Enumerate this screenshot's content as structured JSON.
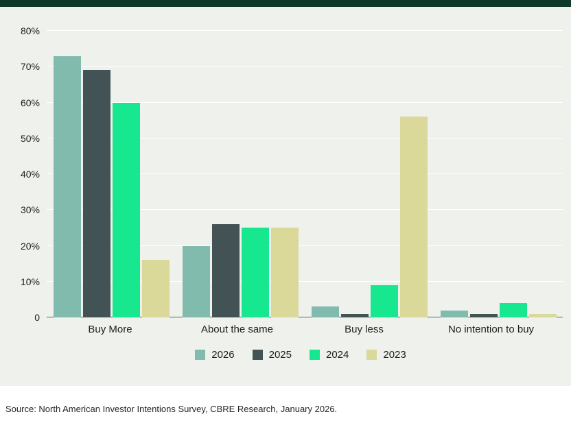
{
  "page": {
    "source_note": "Source: North American Investor Intentions Survey, CBRE Research, January 2026."
  },
  "colors": {
    "top_bar": "#0e3a2c",
    "panel_bg": "#eff1ed",
    "gridline": "#ffffff",
    "axis": "#5a5f5c"
  },
  "chart_data": {
    "type": "bar",
    "title": "",
    "xlabel": "",
    "ylabel": "",
    "ylim": [
      0,
      80
    ],
    "grid": true,
    "legend_position": "bottom",
    "yticks": [
      "80%",
      "70%",
      "60%",
      "50%",
      "40%",
      "30%",
      "20%",
      "10%",
      "0"
    ],
    "categories": [
      "Buy More",
      "About the same",
      "Buy less",
      "No intention to buy"
    ],
    "series": [
      {
        "name": "2026",
        "color": "#80bbad",
        "values": [
          73,
          20,
          3,
          2
        ]
      },
      {
        "name": "2025",
        "color": "#435254",
        "values": [
          69,
          26,
          1,
          1
        ]
      },
      {
        "name": "2024",
        "color": "#17e88f",
        "values": [
          60,
          25,
          9,
          4
        ]
      },
      {
        "name": "2023",
        "color": "#dbd99a",
        "values": [
          16,
          25,
          56,
          1
        ]
      }
    ]
  }
}
